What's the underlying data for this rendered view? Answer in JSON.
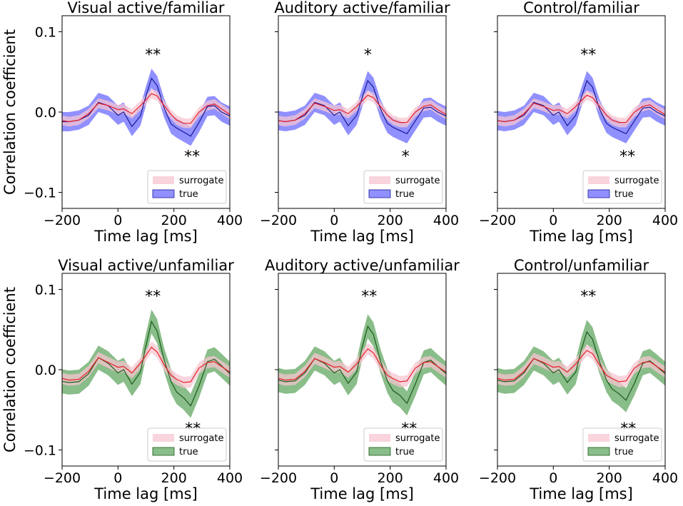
{
  "figure": {
    "ylabel": "Correlation coefficient",
    "xlabel": "Time lag [ms]"
  },
  "colors": {
    "surrogate_fill": "#f7c6d0",
    "surrogate_line": "#e8202a",
    "true_fill_blue": "#5555ff",
    "true_line_blue": "#1a1a99",
    "true_fill_green": "#4a9a4a",
    "true_line_green": "#1a5a1a"
  },
  "chart_data": [
    {
      "type": "line",
      "title": "Visual active/familiar",
      "xlim": [
        -200,
        400
      ],
      "ylim": [
        -0.12,
        0.12
      ],
      "xticks": [
        "−200",
        "0",
        "200",
        "400"
      ],
      "yticks": [
        "0.1",
        "0.0",
        "−0.1"
      ],
      "show_yticks": true,
      "xlabel": "Time lag [ms]",
      "ylabel": "Correlation coefficient",
      "legend": [
        "surrogate",
        "true"
      ],
      "legend_position": "lower-right",
      "true_color": "blue",
      "x": [
        -210,
        -175,
        -140,
        -105,
        -70,
        -35,
        0,
        20,
        50,
        80,
        100,
        120,
        140,
        165,
        190,
        210,
        235,
        260,
        290,
        320,
        345,
        370,
        400,
        410
      ],
      "surrogate": {
        "mean": [
          -0.01,
          -0.012,
          -0.01,
          -0.002,
          0.011,
          0.008,
          0.003,
          0.004,
          -0.002,
          0.008,
          0.015,
          0.023,
          0.02,
          0.008,
          -0.003,
          -0.01,
          -0.014,
          -0.014,
          0.0,
          0.008,
          0.01,
          0.004,
          -0.003,
          -0.004
        ],
        "halfwidth": 0.006
      },
      "true": {
        "mean": [
          -0.012,
          -0.012,
          -0.01,
          -0.004,
          0.012,
          0.008,
          -0.004,
          0.0,
          -0.018,
          -0.005,
          0.02,
          0.042,
          0.033,
          0.005,
          -0.015,
          -0.02,
          -0.025,
          -0.03,
          -0.013,
          0.007,
          0.008,
          0.0,
          -0.005,
          -0.005
        ],
        "halfwidth": 0.012
      },
      "annotations": [
        {
          "text": "**",
          "x": 125,
          "y": 0.074
        },
        {
          "text": "**",
          "x": 265,
          "y": -0.053
        }
      ]
    },
    {
      "type": "line",
      "title": "Auditory active/familiar",
      "xlim": [
        -200,
        400
      ],
      "ylim": [
        -0.12,
        0.12
      ],
      "xticks": [
        "−200",
        "0",
        "200",
        "400"
      ],
      "yticks": [],
      "show_yticks": false,
      "xlabel": "Time lag [ms]",
      "ylabel": "",
      "legend": [
        "surrogate",
        "true"
      ],
      "legend_position": "lower-right",
      "true_color": "blue",
      "x": [
        -210,
        -175,
        -140,
        -105,
        -70,
        -35,
        0,
        20,
        50,
        80,
        100,
        120,
        140,
        165,
        190,
        210,
        235,
        260,
        290,
        320,
        345,
        370,
        400,
        410
      ],
      "surrogate": {
        "mean": [
          -0.01,
          -0.012,
          -0.01,
          -0.002,
          0.011,
          0.007,
          0.002,
          0.003,
          -0.002,
          0.007,
          0.014,
          0.021,
          0.018,
          0.007,
          -0.004,
          -0.01,
          -0.013,
          -0.013,
          0.0,
          0.007,
          0.009,
          0.003,
          -0.003,
          -0.004
        ],
        "halfwidth": 0.006
      },
      "true": {
        "mean": [
          -0.01,
          -0.012,
          -0.01,
          -0.004,
          0.012,
          0.008,
          -0.004,
          0.0,
          -0.017,
          -0.004,
          0.018,
          0.039,
          0.031,
          0.004,
          -0.014,
          -0.019,
          -0.023,
          -0.027,
          -0.011,
          0.005,
          0.006,
          0.0,
          -0.005,
          -0.005
        ],
        "halfwidth": 0.012
      },
      "annotations": [
        {
          "text": "*",
          "x": 120,
          "y": 0.074
        },
        {
          "text": "*",
          "x": 255,
          "y": -0.053
        }
      ]
    },
    {
      "type": "line",
      "title": "Control/familiar",
      "xlim": [
        -200,
        400
      ],
      "ylim": [
        -0.12,
        0.12
      ],
      "xticks": [
        "−200",
        "0",
        "200",
        "400"
      ],
      "yticks": [],
      "show_yticks": false,
      "xlabel": "Time lag [ms]",
      "ylabel": "",
      "legend": [
        "surrogate",
        "true"
      ],
      "legend_position": "lower-right",
      "true_color": "blue",
      "x": [
        -210,
        -175,
        -140,
        -105,
        -70,
        -35,
        0,
        20,
        50,
        80,
        100,
        120,
        140,
        165,
        190,
        210,
        235,
        260,
        290,
        320,
        345,
        370,
        400,
        410
      ],
      "surrogate": {
        "mean": [
          -0.01,
          -0.012,
          -0.01,
          -0.002,
          0.011,
          0.007,
          0.002,
          0.003,
          -0.002,
          0.007,
          0.014,
          0.021,
          0.018,
          0.007,
          -0.004,
          -0.01,
          -0.013,
          -0.013,
          0.0,
          0.007,
          0.009,
          0.003,
          -0.003,
          -0.004
        ],
        "halfwidth": 0.006
      },
      "true": {
        "mean": [
          -0.01,
          -0.012,
          -0.01,
          -0.004,
          0.012,
          0.008,
          -0.004,
          0.0,
          -0.017,
          -0.004,
          0.018,
          0.039,
          0.031,
          0.004,
          -0.014,
          -0.019,
          -0.023,
          -0.027,
          -0.011,
          0.005,
          0.006,
          0.0,
          -0.005,
          -0.005
        ],
        "halfwidth": 0.012
      },
      "annotations": [
        {
          "text": "**",
          "x": 125,
          "y": 0.074
        },
        {
          "text": "**",
          "x": 265,
          "y": -0.053
        }
      ]
    },
    {
      "type": "line",
      "title": "Visual active/unfamiliar",
      "xlim": [
        -200,
        400
      ],
      "ylim": [
        -0.12,
        0.12
      ],
      "xticks": [
        "−200",
        "0",
        "200",
        "400"
      ],
      "yticks": [
        "0.1",
        "0.0",
        "−0.1"
      ],
      "show_yticks": true,
      "xlabel": "Time lag [ms]",
      "ylabel": "Correlation coefficient",
      "legend": [
        "surrogate",
        "true"
      ],
      "legend_position": "lower-right",
      "true_color": "green",
      "x": [
        -210,
        -175,
        -140,
        -105,
        -70,
        -35,
        0,
        20,
        50,
        80,
        100,
        120,
        140,
        165,
        190,
        210,
        235,
        260,
        290,
        320,
        345,
        370,
        400,
        410
      ],
      "surrogate": {
        "mean": [
          -0.01,
          -0.013,
          -0.012,
          -0.002,
          0.015,
          0.009,
          0.003,
          0.004,
          -0.004,
          0.008,
          0.018,
          0.028,
          0.022,
          0.006,
          -0.007,
          -0.012,
          -0.016,
          -0.015,
          0.002,
          0.009,
          0.01,
          0.004,
          -0.003,
          -0.004
        ],
        "halfwidth": 0.007
      },
      "true": {
        "mean": [
          -0.014,
          -0.016,
          -0.015,
          -0.005,
          0.015,
          0.008,
          -0.004,
          0.0,
          -0.018,
          -0.003,
          0.03,
          0.06,
          0.048,
          0.012,
          -0.015,
          -0.028,
          -0.035,
          -0.045,
          -0.02,
          0.01,
          0.013,
          0.005,
          -0.005,
          -0.006
        ],
        "halfwidth": 0.015
      },
      "annotations": [
        {
          "text": "**",
          "x": 125,
          "y": 0.094
        },
        {
          "text": "**",
          "x": 268,
          "y": -0.071
        }
      ]
    },
    {
      "type": "line",
      "title": "Auditory active/unfamiliar",
      "xlim": [
        -200,
        400
      ],
      "ylim": [
        -0.12,
        0.12
      ],
      "xticks": [
        "−200",
        "0",
        "200",
        "400"
      ],
      "yticks": [],
      "show_yticks": false,
      "xlabel": "Time lag [ms]",
      "ylabel": "",
      "legend": [
        "surrogate",
        "true"
      ],
      "legend_position": "lower-right",
      "true_color": "green",
      "x": [
        -210,
        -175,
        -140,
        -105,
        -70,
        -35,
        0,
        20,
        50,
        80,
        100,
        120,
        140,
        165,
        190,
        210,
        235,
        260,
        290,
        320,
        345,
        370,
        400,
        410
      ],
      "surrogate": {
        "mean": [
          -0.01,
          -0.013,
          -0.012,
          -0.002,
          0.014,
          0.009,
          0.003,
          0.004,
          -0.003,
          0.007,
          0.017,
          0.026,
          0.021,
          0.006,
          -0.007,
          -0.011,
          -0.015,
          -0.014,
          0.002,
          0.009,
          0.01,
          0.004,
          -0.003,
          -0.004
        ],
        "halfwidth": 0.007
      },
      "true": {
        "mean": [
          -0.012,
          -0.015,
          -0.014,
          -0.004,
          0.014,
          0.008,
          -0.004,
          0.0,
          -0.017,
          -0.003,
          0.028,
          0.054,
          0.044,
          0.011,
          -0.014,
          -0.026,
          -0.032,
          -0.042,
          -0.018,
          0.009,
          0.012,
          0.004,
          -0.005,
          -0.006
        ],
        "halfwidth": 0.015
      },
      "annotations": [
        {
          "text": "**",
          "x": 125,
          "y": 0.094
        },
        {
          "text": "**",
          "x": 268,
          "y": -0.071
        }
      ]
    },
    {
      "type": "line",
      "title": "Control/unfamiliar",
      "xlim": [
        -200,
        400
      ],
      "ylim": [
        -0.12,
        0.12
      ],
      "xticks": [
        "−200",
        "0",
        "200",
        "400"
      ],
      "yticks": [],
      "show_yticks": false,
      "xlabel": "Time lag [ms]",
      "ylabel": "",
      "legend": [
        "surrogate",
        "true"
      ],
      "legend_position": "lower-right",
      "true_color": "green",
      "x": [
        -210,
        -175,
        -140,
        -105,
        -70,
        -35,
        0,
        20,
        50,
        80,
        100,
        120,
        140,
        165,
        190,
        210,
        235,
        260,
        290,
        320,
        345,
        370,
        400,
        410
      ],
      "surrogate": {
        "mean": [
          -0.01,
          -0.013,
          -0.012,
          -0.002,
          0.014,
          0.009,
          0.003,
          0.004,
          -0.003,
          0.007,
          0.016,
          0.024,
          0.02,
          0.006,
          -0.007,
          -0.011,
          -0.015,
          -0.014,
          0.002,
          0.009,
          0.01,
          0.004,
          -0.003,
          -0.004
        ],
        "halfwidth": 0.007
      },
      "true": {
        "mean": [
          -0.012,
          -0.015,
          -0.014,
          -0.004,
          0.014,
          0.008,
          -0.004,
          0.0,
          -0.016,
          -0.003,
          0.025,
          0.047,
          0.038,
          0.01,
          -0.013,
          -0.024,
          -0.03,
          -0.038,
          -0.017,
          0.008,
          0.011,
          0.004,
          -0.005,
          -0.006
        ],
        "halfwidth": 0.015
      },
      "annotations": [
        {
          "text": "**",
          "x": 125,
          "y": 0.094
        },
        {
          "text": "**",
          "x": 268,
          "y": -0.071
        }
      ]
    }
  ]
}
